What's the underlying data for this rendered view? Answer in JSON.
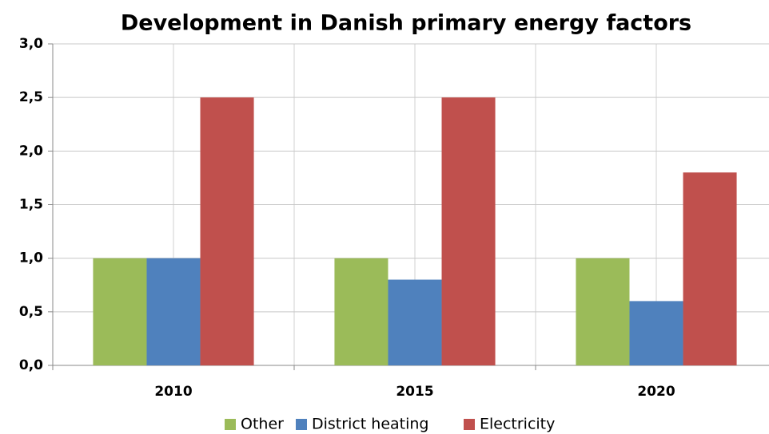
{
  "chart_data": {
    "type": "bar",
    "title": "Development in Danish primary energy factors",
    "categories": [
      "2010",
      "2015",
      "2020"
    ],
    "series": [
      {
        "name": "Other",
        "color": "#9bbb59",
        "values": [
          1.0,
          1.0,
          1.0
        ]
      },
      {
        "name": "District heating",
        "color": "#4f81bd",
        "values": [
          1.0,
          0.8,
          0.6
        ]
      },
      {
        "name": "Electricity",
        "color": "#c0504d",
        "values": [
          2.5,
          2.5,
          1.8
        ]
      }
    ],
    "ylim": [
      0,
      3
    ],
    "yticks": [
      {
        "value": 0,
        "label": "0,0"
      },
      {
        "value": 0.5,
        "label": "0,5"
      },
      {
        "value": 1,
        "label": "1,0"
      },
      {
        "value": 1.5,
        "label": "1,5"
      },
      {
        "value": 2,
        "label": "2,0"
      },
      {
        "value": 2.5,
        "label": "2,5"
      },
      {
        "value": 3,
        "label": "3,0"
      }
    ],
    "grid": true,
    "legend": "bottom"
  }
}
